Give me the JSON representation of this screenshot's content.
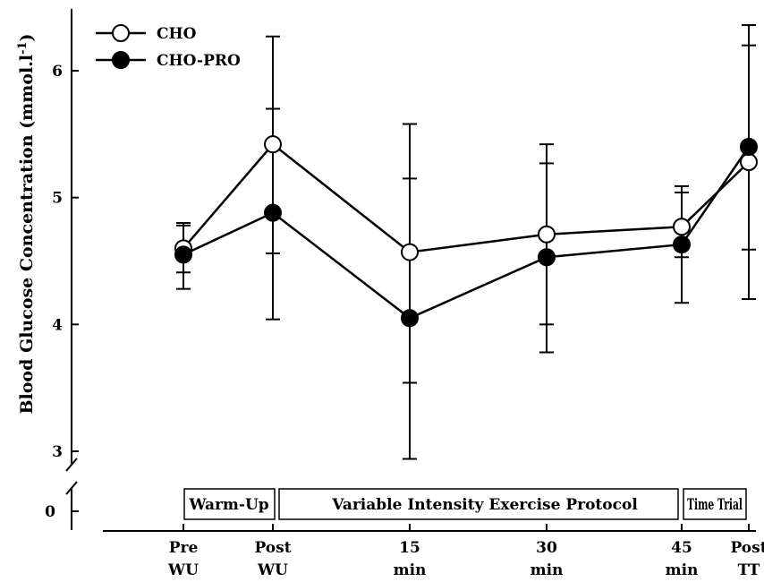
{
  "chart_data": {
    "type": "line",
    "ylabel": "Blood Glucose Concentration (mmol.l",
    "ylabel_sup": "-1",
    "ylabel_close": ")",
    "ylim": [
      2.9,
      6.5
    ],
    "yticks": [
      3,
      4,
      5,
      6
    ],
    "y_zero_label": "0",
    "x_categories": [
      {
        "line1": "Pre",
        "line2": "WU"
      },
      {
        "line1": "Post",
        "line2": "WU"
      },
      {
        "line1": "15",
        "line2": "min"
      },
      {
        "line1": "30",
        "line2": "min"
      },
      {
        "line1": "45",
        "line2": "min"
      },
      {
        "line1": "Post",
        "line2": "TT"
      }
    ],
    "phases": [
      "Warm-Up",
      "Variable Intensity Exercise Protocol",
      "Time Trial"
    ],
    "series": [
      {
        "name": "CHO",
        "marker": "open-circle",
        "values": [
          4.6,
          5.42,
          4.57,
          4.71,
          4.77,
          5.28
        ],
        "err_upper": [
          4.8,
          6.27,
          5.58,
          5.42,
          5.09,
          6.36
        ],
        "err_lower": [
          4.41,
          4.56,
          3.54,
          4.0,
          4.53,
          4.2
        ]
      },
      {
        "name": "CHO-PRO",
        "marker": "filled-circle",
        "values": [
          4.55,
          4.88,
          4.05,
          4.53,
          4.63,
          5.4
        ],
        "err_upper": [
          4.78,
          5.7,
          5.15,
          5.27,
          5.04,
          6.2
        ],
        "err_lower": [
          4.28,
          4.04,
          2.94,
          3.78,
          4.17,
          4.59
        ]
      }
    ],
    "legend_position": "top-left",
    "grid": false
  }
}
